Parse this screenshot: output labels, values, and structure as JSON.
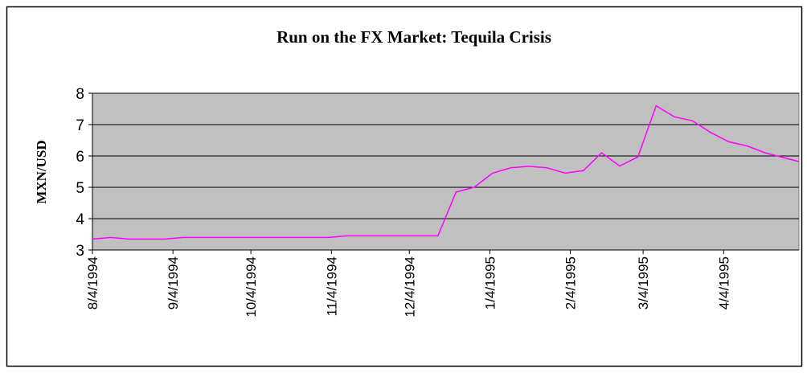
{
  "chart_data": {
    "type": "line",
    "title": "Run on the FX Market: Tequila Crisis",
    "y_label": "MXN/USD",
    "x": [
      "1994-08-04",
      "1994-08-11",
      "1994-08-18",
      "1994-09-01",
      "1994-09-08",
      "1994-10-27",
      "1994-11-03",
      "1994-11-10",
      "1994-12-15",
      "1994-12-22",
      "1994-12-29",
      "1995-01-05",
      "1995-01-12",
      "1995-01-19",
      "1995-01-26",
      "1995-02-02",
      "1995-02-09",
      "1995-02-16",
      "1995-02-23",
      "1995-03-02",
      "1995-03-09",
      "1995-03-16",
      "1995-03-23",
      "1995-03-30",
      "1995-04-06",
      "1995-04-13",
      "1995-04-20",
      "1995-05-03"
    ],
    "series": [
      {
        "name": "MXN/USD",
        "color": "#ff00ff",
        "values": [
          3.35,
          3.4,
          3.35,
          3.35,
          3.4,
          3.4,
          3.4,
          3.45,
          3.45,
          4.85,
          5.0,
          5.45,
          5.62,
          5.67,
          5.62,
          5.45,
          5.53,
          6.1,
          5.68,
          5.97,
          7.6,
          7.25,
          7.12,
          6.75,
          6.45,
          6.32,
          6.1,
          5.82
        ]
      }
    ],
    "xlim": [
      "1994-08-04",
      "1995-05-03"
    ],
    "xticks": [
      {
        "value": "1994-08-04",
        "label": "8/4/1994"
      },
      {
        "value": "1994-09-04",
        "label": "9/4/1994"
      },
      {
        "value": "1994-10-04",
        "label": "10/4/1994"
      },
      {
        "value": "1994-11-04",
        "label": "11/4/1994"
      },
      {
        "value": "1994-12-04",
        "label": "12/4/1994"
      },
      {
        "value": "1995-01-04",
        "label": "1/4/1995"
      },
      {
        "value": "1995-02-04",
        "label": "2/4/1995"
      },
      {
        "value": "1995-03-04",
        "label": "3/4/1995"
      },
      {
        "value": "1995-04-04",
        "label": "4/4/1995"
      }
    ],
    "ylim": [
      3,
      8
    ],
    "yticks": [
      3,
      4,
      5,
      6,
      7,
      8
    ],
    "grid": true,
    "plot_background": "#c0c0c0"
  }
}
